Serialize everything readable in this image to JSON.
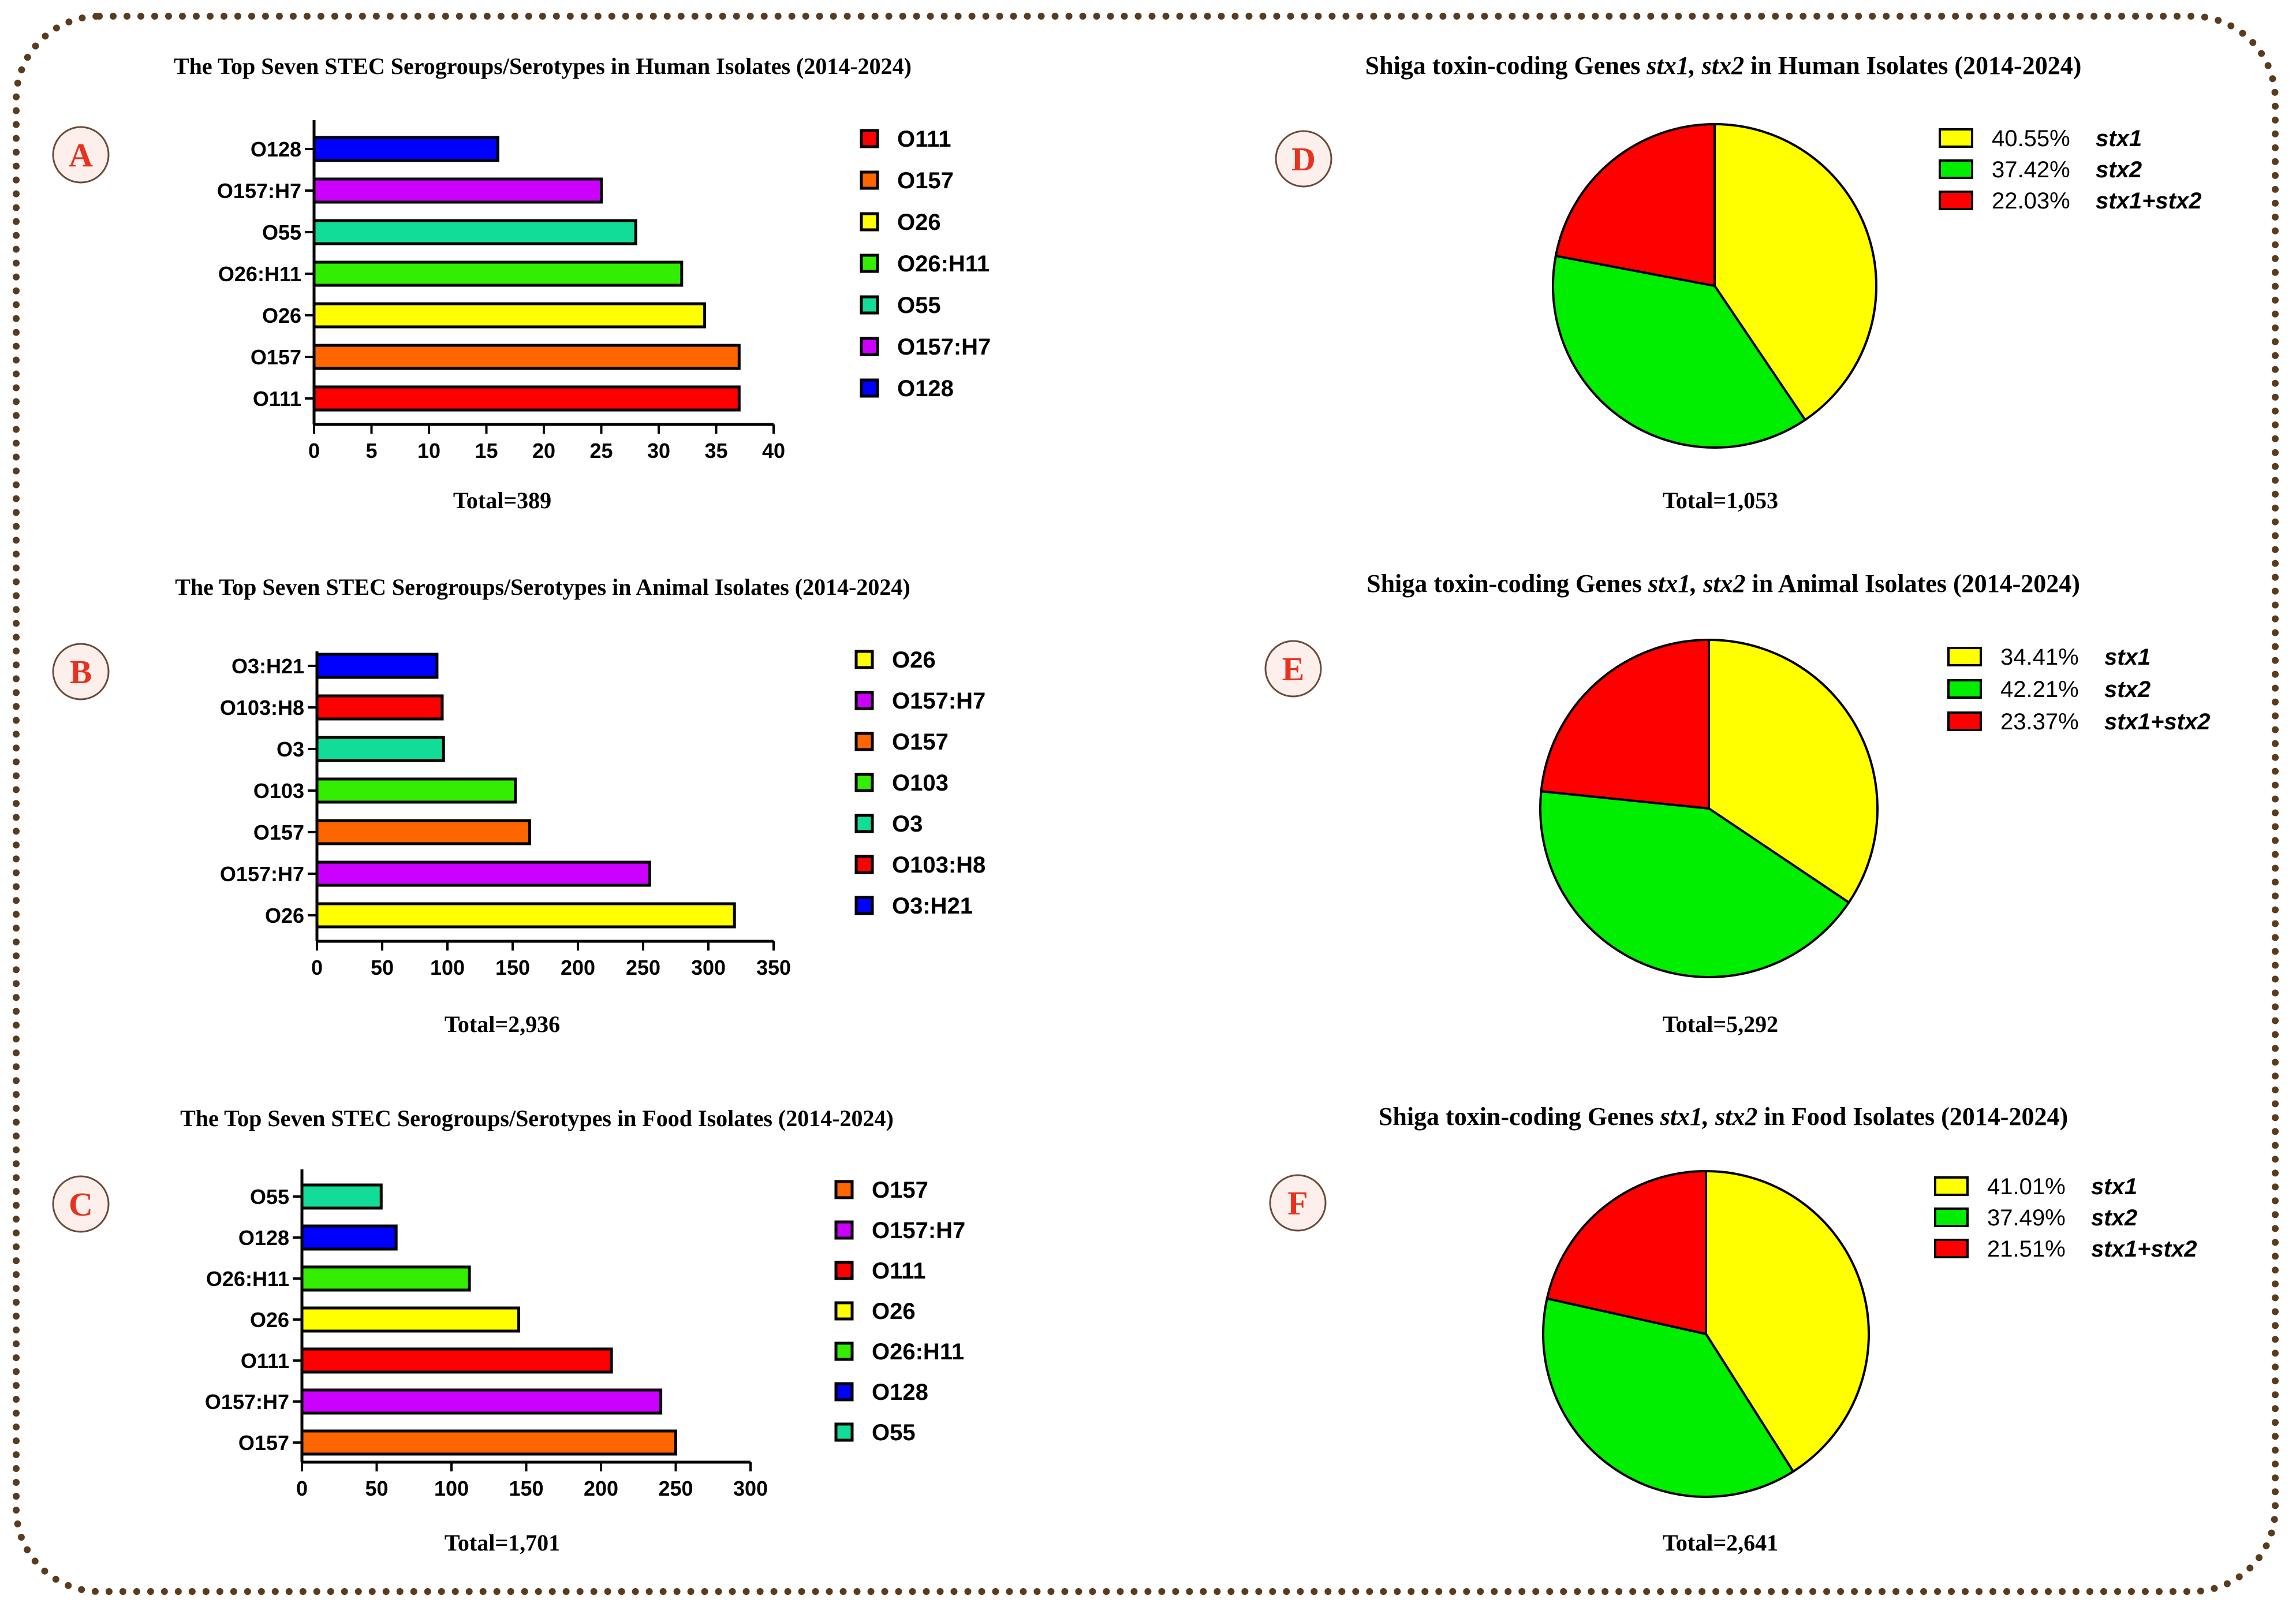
{
  "colors": {
    "O111": "#ff0000",
    "O157": "#ff6600",
    "O26": "#ffff00",
    "O26:H11": "#33ee00",
    "O55": "#11dd99",
    "O157:H7": "#cc00ff",
    "O128": "#0000ff",
    "O103": "#33ee00",
    "O3": "#11dd99",
    "O103:H8": "#ff0000",
    "O3:H21": "#0000ff",
    "stx1": "#ffff00",
    "stx2": "#00ee00",
    "stx1+stx2": "#ff0000",
    "badge_letter": "#e8321e",
    "badge_fill": "#fdf0ec",
    "badge_border": "#6a4a3a",
    "frame": "#5a3b1e"
  },
  "chart_data": [
    {
      "id": "A",
      "type": "bar",
      "orientation": "horizontal",
      "title": "The Top Seven STEC  Serogroups/Serotypes in Human Isolates (2014-2024)",
      "categories": [
        "O111",
        "O157",
        "O26",
        "O26:H11",
        "O55",
        "O157:H7",
        "O128"
      ],
      "values": [
        37,
        37,
        34,
        32,
        28,
        25,
        16
      ],
      "xlim": [
        0,
        40
      ],
      "xticks": [
        0,
        5,
        10,
        15,
        20,
        25,
        30,
        35,
        40
      ],
      "legend": [
        "O111",
        "O157",
        "O26",
        "O26:H11",
        "O55",
        "O157:H7",
        "O128"
      ],
      "total": "Total=389"
    },
    {
      "id": "B",
      "type": "bar",
      "orientation": "horizontal",
      "title": "The Top Seven STEC  Serogroups/Serotypes in Animal Isolates (2014-2024)",
      "categories": [
        "O26",
        "O157:H7",
        "O157",
        "O103",
        "O3",
        "O103:H8",
        "O3:H21"
      ],
      "values": [
        320,
        255,
        163,
        152,
        97,
        96,
        92
      ],
      "xlim": [
        0,
        350
      ],
      "xticks": [
        0,
        50,
        100,
        150,
        200,
        250,
        300,
        350
      ],
      "legend": [
        "O26",
        "O157:H7",
        "O157",
        "O103",
        "O3",
        "O103:H8",
        "O3:H21"
      ],
      "total": "Total=2,936"
    },
    {
      "id": "C",
      "type": "bar",
      "orientation": "horizontal",
      "title": "The Top Seven STEC  Serogroups/Serotypes in Food Isolates (2014-2024)",
      "categories": [
        "O157",
        "O157:H7",
        "O111",
        "O26",
        "O26:H11",
        "O128",
        "O55"
      ],
      "values": [
        250,
        240,
        207,
        145,
        112,
        63,
        53
      ],
      "xlim": [
        0,
        300
      ],
      "xticks": [
        0,
        50,
        100,
        150,
        200,
        250,
        300
      ],
      "legend": [
        "O157",
        "O157:H7",
        "O111",
        "O26",
        "O26:H11",
        "O128",
        "O55"
      ],
      "total": "Total=1,701"
    },
    {
      "id": "D",
      "type": "pie",
      "title_prefix": "Shiga toxin-coding Genes ",
      "title_italic": "stx1, stx2",
      "title_suffix": " in Human Isolates (2014-2024)",
      "slices": [
        {
          "key": "stx1",
          "pct_label": "40.55%",
          "value": 40.55,
          "label": "stx1"
        },
        {
          "key": "stx2",
          "pct_label": "37.42%",
          "value": 37.42,
          "label": "stx2"
        },
        {
          "key": "stx1+stx2",
          "pct_label": "22.03%",
          "value": 22.03,
          "label": "stx1+stx2"
        }
      ],
      "total": "Total=1,053"
    },
    {
      "id": "E",
      "type": "pie",
      "title_prefix": "Shiga toxin-coding Genes ",
      "title_italic": "stx1, stx2",
      "title_suffix": " in Animal Isolates (2014-2024)",
      "slices": [
        {
          "key": "stx1",
          "pct_label": "34.41%",
          "value": 34.41,
          "label": "stx1"
        },
        {
          "key": "stx2",
          "pct_label": "42.21%",
          "value": 42.21,
          "label": "stx2"
        },
        {
          "key": "stx1+stx2",
          "pct_label": "23.37%",
          "value": 23.37,
          "label": "stx1+stx2"
        }
      ],
      "total": "Total=5,292"
    },
    {
      "id": "F",
      "type": "pie",
      "title_prefix": "Shiga toxin-coding Genes ",
      "title_italic": "stx1, stx2",
      "title_suffix": " in Food Isolates (2014-2024)",
      "slices": [
        {
          "key": "stx1",
          "pct_label": "41.01%",
          "value": 41.01,
          "label": "stx1"
        },
        {
          "key": "stx2",
          "pct_label": "37.49%",
          "value": 37.49,
          "label": "stx2"
        },
        {
          "key": "stx1+stx2",
          "pct_label": "21.51%",
          "value": 21.51,
          "label": "stx1+stx2"
        }
      ],
      "total": "Total=2,641"
    }
  ]
}
